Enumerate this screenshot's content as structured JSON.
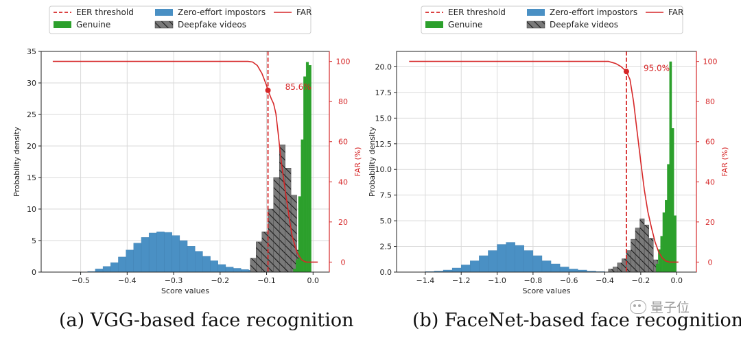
{
  "captions": {
    "a": "(a) VGG-based face recognition",
    "b": "(b) FaceNet-based face recognition"
  },
  "watermark": "量子位",
  "colors": {
    "eer": "#d62728",
    "far": "#d62728",
    "zero_effort": "#4a90c4",
    "genuine": "#2ca02c",
    "deepfake": "#7a7a7a"
  },
  "chart_data": [
    {
      "type": "bar",
      "title": "VGG-based face recognition",
      "xlabel": "Score values",
      "ylabel": "Probability density",
      "y2label": "FAR (%)",
      "xlim": [
        -0.585,
        0.035
      ],
      "ylim": [
        0,
        35
      ],
      "y2lim": [
        -5,
        105
      ],
      "xticks": [
        -0.5,
        -0.4,
        -0.3,
        -0.2,
        -0.1,
        0.0
      ],
      "xtick_labels": [
        "−0.5",
        "−0.4",
        "−0.3",
        "−0.2",
        "−0.1",
        "0.0"
      ],
      "yticks": [
        0,
        5,
        10,
        15,
        20,
        25,
        30,
        35
      ],
      "ytick_labels": [
        "0",
        "5",
        "10",
        "15",
        "20",
        "25",
        "30",
        "35"
      ],
      "y2ticks": [
        0,
        20,
        40,
        60,
        80,
        100
      ],
      "y2tick_labels": [
        "0",
        "20",
        "40",
        "60",
        "80",
        "100"
      ],
      "grid": true,
      "legend": {
        "position": "top",
        "entries": [
          "EER threshold",
          "Zero-effort impostors",
          "FAR",
          "Genuine",
          "Deepfake videos"
        ]
      },
      "eer_threshold": -0.097,
      "eer_label": "85.6%",
      "eer_far": 85.6,
      "series": [
        {
          "name": "Zero-effort impostors",
          "bin_width": 0.0165,
          "bin_left": [
            -0.485,
            -0.4685,
            -0.452,
            -0.4355,
            -0.419,
            -0.4025,
            -0.386,
            -0.3695,
            -0.353,
            -0.3365,
            -0.32,
            -0.3035,
            -0.287,
            -0.2705,
            -0.254,
            -0.2375,
            -0.221,
            -0.2045,
            -0.188,
            -0.1715,
            -0.155,
            -0.1385,
            -0.122
          ],
          "values": [
            0.1,
            0.5,
            0.9,
            1.5,
            2.4,
            3.5,
            4.6,
            5.5,
            6.2,
            6.4,
            6.3,
            5.8,
            5.0,
            4.1,
            3.3,
            2.5,
            1.8,
            1.2,
            0.8,
            0.6,
            0.4,
            0.3,
            0.1
          ]
        },
        {
          "name": "Deepfake videos",
          "bin_width": 0.0125,
          "bin_left": [
            -0.135,
            -0.1225,
            -0.11,
            -0.0975,
            -0.085,
            -0.0725,
            -0.06,
            -0.0475,
            -0.035
          ],
          "values": [
            2.2,
            4.8,
            6.4,
            10.0,
            15.0,
            20.2,
            16.5,
            12.2,
            3.5
          ]
        },
        {
          "name": "Genuine",
          "bin_width": 0.0055,
          "bin_left": [
            -0.0425,
            -0.037,
            -0.0315,
            -0.026,
            -0.0205,
            -0.015,
            -0.0095
          ],
          "values": [
            0.5,
            2.0,
            12.0,
            21.0,
            31.0,
            33.3,
            32.8
          ]
        },
        {
          "name": "FAR",
          "x": [
            -0.56,
            -0.14,
            -0.13,
            -0.12,
            -0.11,
            -0.105,
            -0.1,
            -0.097,
            -0.09,
            -0.085,
            -0.08,
            -0.075,
            -0.07,
            -0.065,
            -0.06,
            -0.055,
            -0.05,
            -0.045,
            -0.04,
            -0.035,
            -0.03,
            -0.025,
            -0.02,
            -0.015,
            0.01
          ],
          "values": [
            100,
            100,
            99.7,
            98,
            94,
            91,
            88,
            85.6,
            81.5,
            79,
            74,
            64,
            53,
            44,
            36,
            28,
            20,
            13,
            9,
            5,
            3,
            1.2,
            0.5,
            0,
            0
          ]
        }
      ]
    },
    {
      "type": "bar",
      "title": "FaceNet-based face recognition",
      "xlabel": "Score values",
      "ylabel": "Probability density",
      "y2label": "FAR (%)",
      "xlim": [
        -1.56,
        0.11
      ],
      "ylim": [
        0,
        21.5
      ],
      "y2lim": [
        -5,
        105
      ],
      "xticks": [
        -1.4,
        -1.2,
        -1.0,
        -0.8,
        -0.6,
        -0.4,
        -0.2,
        0.0
      ],
      "xtick_labels": [
        "−1.4",
        "−1.2",
        "−1.0",
        "−0.8",
        "−0.6",
        "−0.4",
        "−0.2",
        "0.0"
      ],
      "yticks": [
        0,
        2.5,
        5,
        7.5,
        10,
        12.5,
        15,
        17.5,
        20
      ],
      "ytick_labels": [
        "0.0",
        "2.5",
        "5.0",
        "7.5",
        "10.0",
        "12.5",
        "15.0",
        "17.5",
        "20.0"
      ],
      "y2ticks": [
        0,
        20,
        40,
        60,
        80,
        100
      ],
      "y2tick_labels": [
        "0",
        "20",
        "40",
        "60",
        "80",
        "100"
      ],
      "grid": true,
      "legend": {
        "position": "top",
        "entries": [
          "EER threshold",
          "Zero-effort impostors",
          "FAR",
          "Genuine",
          "Deepfake videos"
        ]
      },
      "eer_threshold": -0.28,
      "eer_label": "95.0%",
      "eer_far": 95.0,
      "series": [
        {
          "name": "Zero-effort impostors",
          "bin_width": 0.05,
          "bin_left": [
            -1.4,
            -1.35,
            -1.3,
            -1.25,
            -1.2,
            -1.15,
            -1.1,
            -1.05,
            -1.0,
            -0.95,
            -0.9,
            -0.85,
            -0.8,
            -0.75,
            -0.7,
            -0.65,
            -0.6,
            -0.55,
            -0.5,
            -0.45
          ],
          "values": [
            0.05,
            0.1,
            0.2,
            0.4,
            0.7,
            1.1,
            1.6,
            2.1,
            2.7,
            2.9,
            2.6,
            2.1,
            1.6,
            1.1,
            0.8,
            0.5,
            0.3,
            0.2,
            0.1,
            0.05
          ]
        },
        {
          "name": "Deepfake videos",
          "bin_width": 0.025,
          "bin_left": [
            -0.38,
            -0.355,
            -0.33,
            -0.305,
            -0.28,
            -0.255,
            -0.23,
            -0.205,
            -0.18,
            -0.155,
            -0.13,
            -0.105
          ],
          "values": [
            0.3,
            0.5,
            0.9,
            1.3,
            2.1,
            3.2,
            4.3,
            5.2,
            4.6,
            3.3,
            1.2,
            0.5
          ]
        },
        {
          "name": "Genuine",
          "bin_width": 0.0125,
          "bin_left": [
            -0.115,
            -0.1025,
            -0.09,
            -0.0775,
            -0.065,
            -0.0525,
            -0.04,
            -0.0275,
            -0.015
          ],
          "values": [
            0.8,
            2.2,
            3.5,
            5.8,
            7.0,
            10.5,
            20.5,
            14.0,
            5.5
          ]
        },
        {
          "name": "FAR",
          "x": [
            -1.49,
            -0.38,
            -0.34,
            -0.31,
            -0.28,
            -0.26,
            -0.24,
            -0.22,
            -0.2,
            -0.18,
            -0.16,
            -0.14,
            -0.12,
            -0.1,
            -0.08,
            -0.06,
            -0.04,
            -0.02,
            0.01
          ],
          "values": [
            100,
            100,
            99,
            97.5,
            95,
            91,
            80,
            65,
            50,
            36,
            25,
            17,
            10,
            5,
            2,
            0.5,
            0,
            0,
            0
          ]
        }
      ]
    }
  ]
}
